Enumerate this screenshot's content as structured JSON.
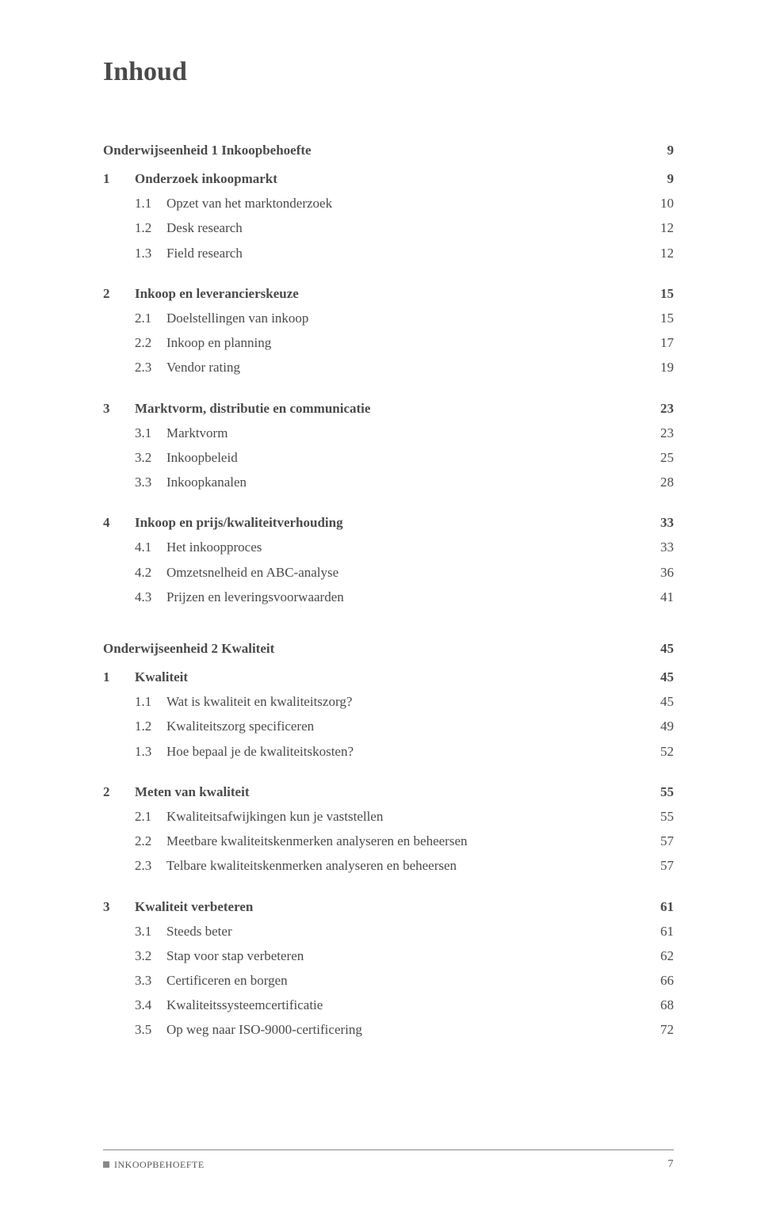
{
  "title": "Inhoud",
  "units": [
    {
      "heading": {
        "label": "Onderwijseenheid 1 Inkoopbehoefte",
        "page": "9"
      },
      "chapters": [
        {
          "num": "1",
          "title": "Onderzoek inkoopmarkt",
          "page": "9",
          "subs": [
            {
              "num": "1.1",
              "title": "Opzet van het marktonderzoek",
              "page": "10"
            },
            {
              "num": "1.2",
              "title": "Desk research",
              "page": "12"
            },
            {
              "num": "1.3",
              "title": "Field research",
              "page": "12"
            }
          ]
        },
        {
          "num": "2",
          "title": "Inkoop en leverancierskeuze",
          "page": "15",
          "subs": [
            {
              "num": "2.1",
              "title": "Doelstellingen van inkoop",
              "page": "15"
            },
            {
              "num": "2.2",
              "title": "Inkoop en planning",
              "page": "17"
            },
            {
              "num": "2.3",
              "title": "Vendor rating",
              "page": "19"
            }
          ]
        },
        {
          "num": "3",
          "title": "Marktvorm, distributie en communicatie",
          "page": "23",
          "subs": [
            {
              "num": "3.1",
              "title": "Marktvorm",
              "page": "23"
            },
            {
              "num": "3.2",
              "title": "Inkoopbeleid",
              "page": "25"
            },
            {
              "num": "3.3",
              "title": "Inkoopkanalen",
              "page": "28"
            }
          ]
        },
        {
          "num": "4",
          "title": "Inkoop en prijs/kwaliteitverhouding",
          "page": "33",
          "subs": [
            {
              "num": "4.1",
              "title": "Het inkoopproces",
              "page": "33"
            },
            {
              "num": "4.2",
              "title": "Omzetsnelheid en ABC-analyse",
              "page": "36"
            },
            {
              "num": "4.3",
              "title": "Prijzen en leveringsvoorwaarden",
              "page": "41"
            }
          ]
        }
      ]
    },
    {
      "heading": {
        "label": "Onderwijseenheid 2 Kwaliteit",
        "page": "45"
      },
      "chapters": [
        {
          "num": "1",
          "title": "Kwaliteit",
          "page": "45",
          "subs": [
            {
              "num": "1.1",
              "title": "Wat is kwaliteit en kwaliteitszorg?",
              "page": "45"
            },
            {
              "num": "1.2",
              "title": "Kwaliteitszorg specificeren",
              "page": "49"
            },
            {
              "num": "1.3",
              "title": "Hoe bepaal je de kwaliteitskosten?",
              "page": "52"
            }
          ]
        },
        {
          "num": "2",
          "title": "Meten van kwaliteit",
          "page": "55",
          "subs": [
            {
              "num": "2.1",
              "title": "Kwaliteitsafwijkingen kun je vaststellen",
              "page": "55"
            },
            {
              "num": "2.2",
              "title": "Meetbare kwaliteitskenmerken analyseren en beheersen",
              "page": "57"
            },
            {
              "num": "2.3",
              "title": "Telbare kwaliteitskenmerken analyseren en beheersen",
              "page": "57"
            }
          ]
        },
        {
          "num": "3",
          "title": "Kwaliteit verbeteren",
          "page": "61",
          "subs": [
            {
              "num": "3.1",
              "title": "Steeds beter",
              "page": "61"
            },
            {
              "num": "3.2",
              "title": "Stap voor stap verbeteren",
              "page": "62"
            },
            {
              "num": "3.3",
              "title": "Certificeren en borgen",
              "page": "66"
            },
            {
              "num": "3.4",
              "title": "Kwaliteitssysteemcertificatie",
              "page": "68"
            },
            {
              "num": "3.5",
              "title": "Op weg naar ISO-9000-certificering",
              "page": "72"
            }
          ]
        }
      ]
    }
  ],
  "footer": {
    "left": "INKOOPBEHOEFTE",
    "page": "7"
  },
  "style": {
    "body_font": "Georgia, Times New Roman, serif",
    "text_color": "#4a4a4a",
    "background_color": "#ffffff",
    "title_fontsize": 34,
    "body_fontsize": 17,
    "footer_fontsize": 12,
    "footer_border_color": "#888",
    "footer_square_color": "#888"
  }
}
